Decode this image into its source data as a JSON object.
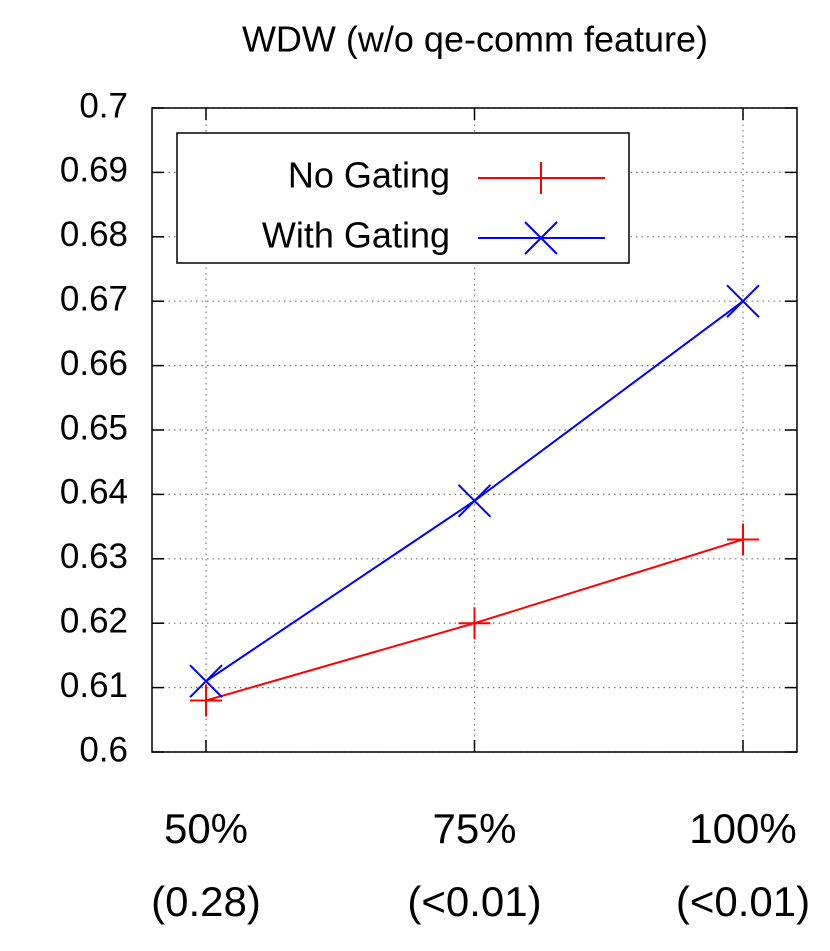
{
  "chart_data": {
    "type": "line",
    "title": "WDW (w/o qe-comm feature)",
    "categories": [
      "50%",
      "75%",
      "100%"
    ],
    "category_notes": [
      "(0.28)",
      "(<0.01)",
      "(<0.01)"
    ],
    "series": [
      {
        "name": "No Gating",
        "color": "#ff0000",
        "marker": "plus",
        "values": [
          0.608,
          0.62,
          0.633
        ]
      },
      {
        "name": "With Gating",
        "color": "#0000ff",
        "marker": "cross",
        "values": [
          0.611,
          0.639,
          0.67
        ]
      }
    ],
    "ylim": [
      0.6,
      0.7
    ],
    "yticks": [
      0.6,
      0.61,
      0.62,
      0.63,
      0.64,
      0.65,
      0.66,
      0.67,
      0.68,
      0.69,
      0.7
    ],
    "grid": true,
    "legend": "top-left"
  }
}
